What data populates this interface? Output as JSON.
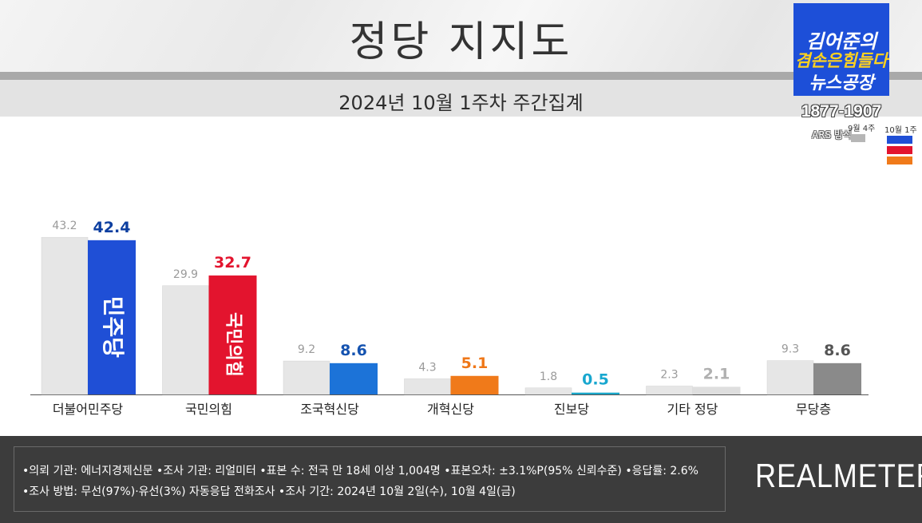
{
  "header": {
    "title": "정당 지지도",
    "subtitle": "2024년 10월 1주차 주간집계"
  },
  "logo": {
    "line1": "김어준의",
    "line2": "겸손은힘들다",
    "line3": "뉴스공장",
    "phone": "1877-1907",
    "method": "ARS 방식"
  },
  "legend": {
    "prev_label": "9월 4주",
    "cur_label": "10월 1주",
    "cur_colors": [
      "#1f4fd6",
      "#e3142e",
      "#f07a1a"
    ]
  },
  "chart_data": {
    "type": "bar",
    "categories": [
      "더불어민주당",
      "국민의힘",
      "조국혁신당",
      "개혁신당",
      "진보당",
      "기타 정당",
      "무당층"
    ],
    "series": [
      {
        "name": "9월 4주",
        "values": [
          43.2,
          29.9,
          9.2,
          4.3,
          1.8,
          2.3,
          9.3
        ],
        "color": "#e6e6e6"
      },
      {
        "name": "10월 1주",
        "values": [
          42.4,
          32.7,
          8.6,
          5.1,
          0.5,
          2.1,
          8.6
        ],
        "colors": [
          "#1f4fd6",
          "#e3142e",
          "#1c73d8",
          "#f07a1a",
          "#19a7c9",
          "#dedede",
          "#8a8a8a"
        ],
        "label_colors": [
          "#0d3fa0",
          "#e3142e",
          "#1553b0",
          "#ef7718",
          "#18a7cf",
          "#b0b0b0",
          "#555555"
        ]
      }
    ],
    "bar_logos": [
      "민주당",
      "국민의힘"
    ],
    "ylim": [
      0,
      45
    ]
  },
  "footer": {
    "note1": "•의뢰 기관: 에너지경제신문  •조사 기관: 리얼미터 •표본 수: 전국 만 18세 이상 1,004명 •표본오차: ±3.1%P(95% 신뢰수준) •응답률: 2.6%",
    "note2": "•조사 방법: 무선(97%)·유선(3%) 자동응답 전화조사 •조사 기간: 2024년 10월 2일(수),  10월 4일(금)",
    "brand": "REALMETER"
  }
}
